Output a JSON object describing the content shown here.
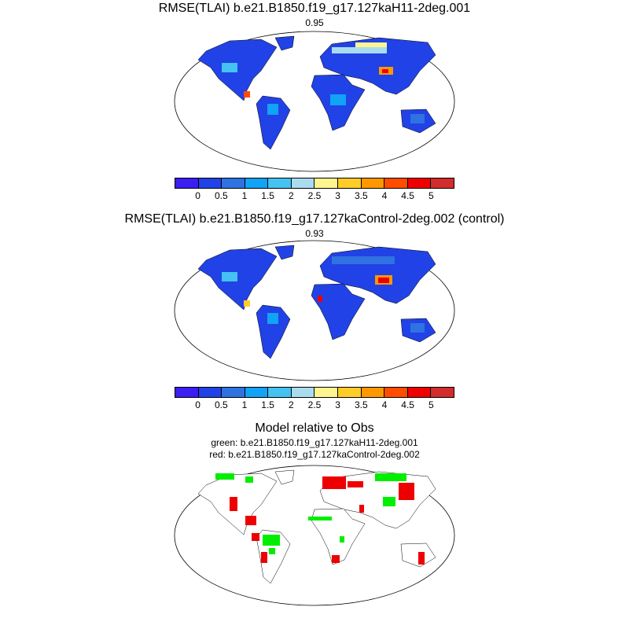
{
  "panels": [
    {
      "title": "RMSE(TLAI) b.e21.B1850.f19_g17.127kaH11-2deg.001",
      "value": "0.95"
    },
    {
      "title": "RMSE(TLAI) b.e21.B1850.f19_g17.127kaControl-2deg.002 (control)",
      "value": "0.93"
    }
  ],
  "comparison": {
    "title": "Model relative to Obs",
    "green": "green: b.e21.B1850.f19_g17.127kaH11-2deg.001",
    "red": "red: b.e21.B1850.f19_g17.127kaControl-2deg.002"
  },
  "colorbar": {
    "colors": [
      "#3a1ef2",
      "#2142e6",
      "#2f72e2",
      "#12a2f6",
      "#44c2f2",
      "#aadcf0",
      "#fff590",
      "#ffcc28",
      "#ff9800",
      "#ff4c00",
      "#ee0000",
      "#d22c2c"
    ],
    "labels": [
      "0",
      "0.5",
      "1",
      "1.5",
      "2",
      "2.5",
      "3",
      "3.5",
      "4",
      "4.5",
      "5"
    ]
  },
  "chart_data": {
    "type": "heatmap",
    "maps": [
      "RMSE(TLAI) H11 (mean 0.95)",
      "RMSE(TLAI) Control (mean 0.93)",
      "Model relative to Obs"
    ],
    "colorbar_levels": [
      0,
      0.5,
      1,
      1.5,
      2,
      2.5,
      3,
      3.5,
      4,
      4.5,
      5
    ],
    "comparison_colors": {
      "green": "#00ee00",
      "red": "#ee0000"
    }
  }
}
